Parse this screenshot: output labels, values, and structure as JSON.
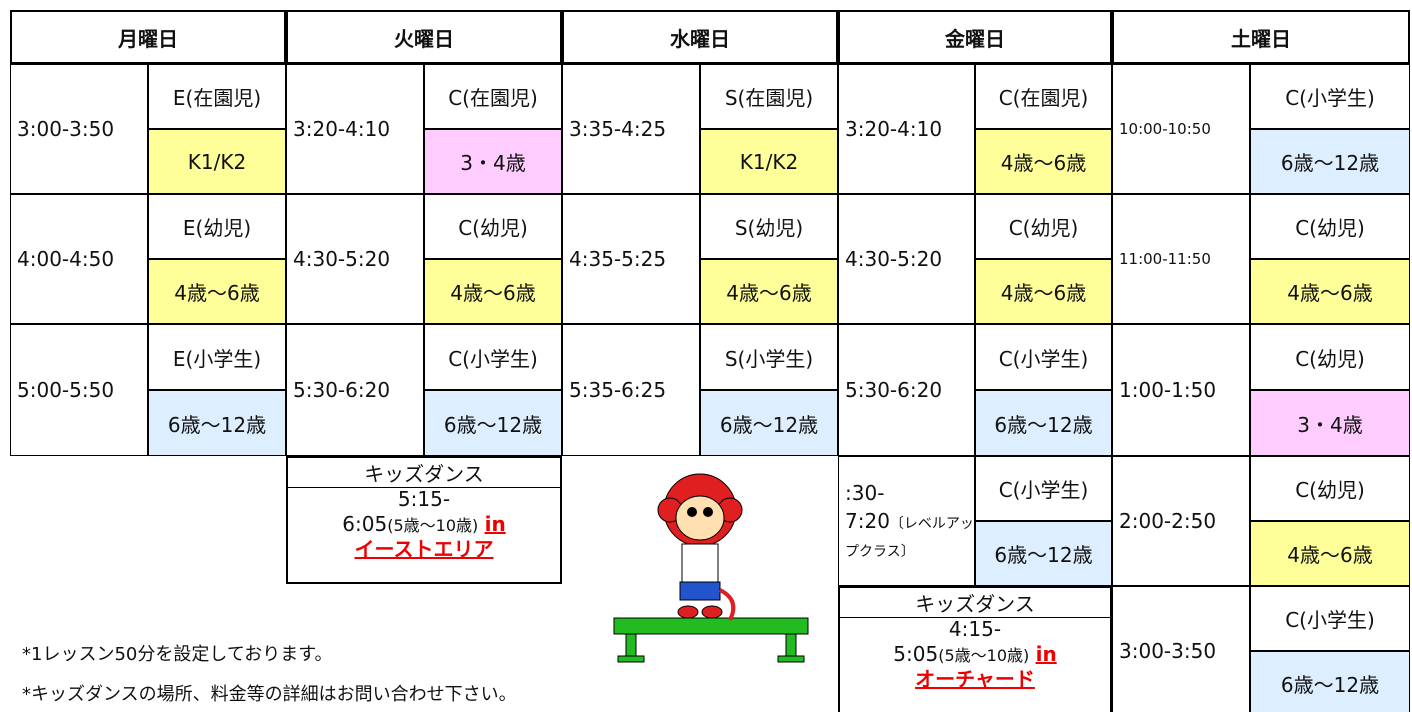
{
  "days": [
    {
      "name": "月曜日",
      "slots": [
        {
          "time": "3:00-3:50",
          "class": "E(在園児)",
          "age": "K1/K2",
          "color": "#ffff99"
        },
        {
          "time": "4:00-4:50",
          "class": "E(幼児)",
          "age": "4歳～6歳",
          "color": "#ffff99"
        },
        {
          "time": "5:00-5:50",
          "class": "E(小学生)",
          "age": "6歳～12歳",
          "color": "#ddeeff"
        }
      ]
    },
    {
      "name": "火曜日",
      "slots": [
        {
          "time": "3:20-4:10",
          "class": "C(在園児)",
          "age": "3・4歳",
          "color": "#ffccff"
        },
        {
          "time": "4:30-5:20",
          "class": "C(幼児)",
          "age": "4歳～6歳",
          "color": "#ffff99"
        },
        {
          "time": "5:30-6:20",
          "class": "C(小学生)",
          "age": "6歳～12歳",
          "color": "#ddeeff"
        }
      ],
      "dance": {
        "title": "キッズダンス",
        "time": "5:15-",
        "time2": "6:05",
        "age": "(5歳～10歳)",
        "in": "in",
        "place": "イーストエリア"
      }
    },
    {
      "name": "水曜日",
      "slots": [
        {
          "time": "3:35-4:25",
          "class": "S(在園児)",
          "age": "K1/K2",
          "color": "#ffff99"
        },
        {
          "time": "4:35-5:25",
          "class": "S(幼児)",
          "age": "4歳～6歳",
          "color": "#ffff99"
        },
        {
          "time": "5:35-6:25",
          "class": "S(小学生)",
          "age": "6歳～12歳",
          "color": "#ddeeff"
        }
      ]
    },
    {
      "name": "金曜日",
      "slots": [
        {
          "time": "3:20-4:10",
          "class": "C(在園児)",
          "age": "4歳～6歳",
          "color": "#ffff99"
        },
        {
          "time": "4:30-5:20",
          "class": "C(幼児)",
          "age": "4歳～6歳",
          "color": "#ffff99"
        },
        {
          "time": "5:30-6:20",
          "class": "C(小学生)",
          "age": "6歳～12歳",
          "color": "#ddeeff"
        },
        {
          "time": ":30-",
          "time2": "7:20",
          "note": "〔レベルアップクラス〕",
          "class": "C(小学生)",
          "age": "6歳～12歳",
          "color": "#ddeeff"
        }
      ],
      "dance": {
        "title": "キッズダンス",
        "time": "4:15-",
        "time2": "5:05",
        "age": "(5歳～10歳)",
        "in": "in",
        "place": "オーチャード"
      }
    },
    {
      "name": "土曜日",
      "slots": [
        {
          "time": "10:00-10:50",
          "class": "C(小学生)",
          "age": "6歳～12歳",
          "color": "#ddeeff"
        },
        {
          "time": "11:00-11:50",
          "class": "C(幼児)",
          "age": "4歳～6歳",
          "color": "#ffff99"
        },
        {
          "time": "1:00-1:50",
          "class": "C(幼児)",
          "age": "3・4歳",
          "color": "#ffccff"
        },
        {
          "time": "2:00-2:50",
          "class": "C(幼児)",
          "age": "4歳～6歳",
          "color": "#ffff99"
        },
        {
          "time": "3:00-3:50",
          "class": "C(小学生)",
          "age": "6歳～12歳",
          "color": "#ddeeff"
        }
      ]
    }
  ],
  "notes": [
    "*1レッスン50分を設定しております。",
    "*キッズダンスの場所、料金等の詳細はお問い合わせ下さい。"
  ]
}
